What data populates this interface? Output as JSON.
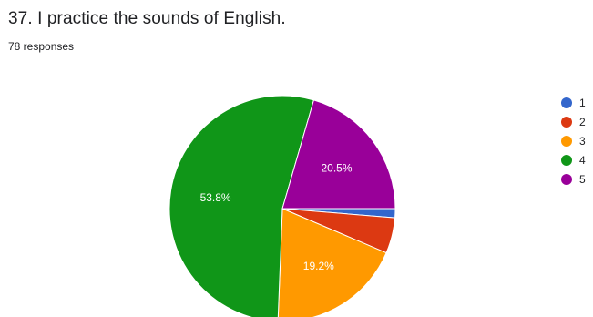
{
  "question": {
    "title": "37. I practice the sounds of English.",
    "responses": "78 responses"
  },
  "colors": {
    "1": "#3366cc",
    "2": "#dc3912",
    "3": "#ff9900",
    "4": "#109618",
    "5": "#990099"
  },
  "chart_data": {
    "type": "pie",
    "categories": [
      "1",
      "2",
      "3",
      "4",
      "5"
    ],
    "values": [
      1.3,
      5.1,
      19.2,
      53.8,
      20.5
    ],
    "slice_labels": [
      "",
      "",
      "19.2%",
      "53.8%",
      "20.5%"
    ],
    "legend": [
      "1",
      "2",
      "3",
      "4",
      "5"
    ],
    "legend_placement": "right",
    "start": "3 o'clock, clockwise"
  }
}
